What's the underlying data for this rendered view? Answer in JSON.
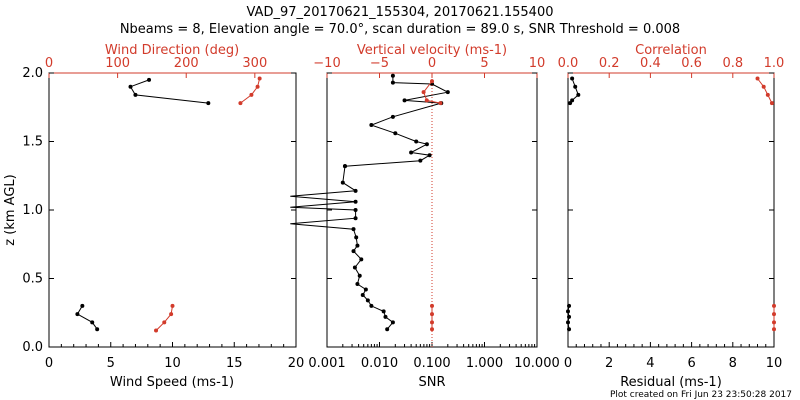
{
  "figure": {
    "title_line1": "VAD_97_20170621_155304, 20170621.155400",
    "title_line2": "Nbeams = 8, Elevation angle = 70.0°, scan duration = 89.0 s, SNR Threshold = 0.008",
    "footer": "Plot created on Fri Jun 23 23:50:28 2017"
  },
  "colors": {
    "primary": "#000000",
    "secondary": "#d23b2b"
  },
  "chart_data": [
    {
      "type": "line",
      "title": "Wind Speed / Wind Direction",
      "xlabel": "Wind Speed (ms-1)",
      "ylabel": "z (km AGL)",
      "xlim": [
        0,
        20
      ],
      "ylim": [
        0,
        2.0
      ],
      "x_ticks": [
        "0",
        "5",
        "10",
        "15",
        "20"
      ],
      "y_ticks": [
        "0.0",
        "0.5",
        "1.0",
        "1.5",
        "2.0"
      ],
      "top_axis": {
        "label": "Wind Direction (deg)",
        "lim": [
          0,
          360
        ],
        "ticks": [
          "0",
          "100",
          "200",
          "300"
        ]
      },
      "series": [
        {
          "name": "Wind Speed",
          "color": "black",
          "axis": "bottom",
          "segments": [
            [
              [
                8.1,
                1.95
              ],
              [
                6.6,
                1.9
              ],
              [
                7.0,
                1.84
              ],
              [
                12.9,
                1.78
              ]
            ],
            [
              [
                2.7,
                0.3
              ],
              [
                2.3,
                0.24
              ],
              [
                3.5,
                0.18
              ],
              [
                3.9,
                0.13
              ]
            ]
          ]
        },
        {
          "name": "Wind Direction",
          "color": "red",
          "axis": "top",
          "segments": [
            [
              [
                307,
                1.96
              ],
              [
                304,
                1.9
              ],
              [
                295,
                1.84
              ],
              [
                279,
                1.78
              ]
            ],
            [
              [
                180,
                0.3
              ],
              [
                178,
                0.24
              ],
              [
                168,
                0.18
              ],
              [
                156,
                0.12
              ]
            ]
          ]
        }
      ]
    },
    {
      "type": "line",
      "title": "SNR / Vertical velocity",
      "xlabel": "SNR",
      "xscale": "log",
      "xlim": [
        0.001,
        10
      ],
      "ylim": [
        0,
        2.0
      ],
      "x_ticks": [
        "0.001",
        "0.010",
        "0.100",
        "1.000",
        "10.000"
      ],
      "top_axis": {
        "label": "Vertical velocity (ms-1)",
        "lim": [
          -10,
          10
        ],
        "ticks": [
          "−10",
          "−5",
          "0",
          "5",
          "10"
        ]
      },
      "series": [
        {
          "name": "SNR",
          "color": "black",
          "axis": "bottom",
          "segments": [
            [
              [
                0.018,
                1.98
              ],
              [
                0.018,
                1.93
              ],
              [
                0.1,
                1.92
              ],
              [
                0.2,
                1.86
              ],
              [
                0.03,
                1.8
              ],
              [
                0.15,
                1.78
              ],
              [
                0.018,
                1.68
              ],
              [
                0.007,
                1.62
              ],
              [
                0.02,
                1.56
              ],
              [
                0.05,
                1.5
              ],
              [
                0.08,
                1.48
              ],
              [
                0.04,
                1.42
              ],
              [
                0.09,
                1.4
              ],
              [
                0.06,
                1.36
              ],
              [
                0.0022,
                1.32
              ]
            ],
            [
              [
                0.0022,
                1.32
              ],
              [
                0.002,
                1.2
              ],
              [
                0.0035,
                1.14
              ],
              [
                0.0002,
                1.1
              ],
              [
                0.0035,
                1.06
              ],
              [
                0.0002,
                1.02
              ],
              [
                0.0035,
                1.0
              ],
              [
                0.0035,
                0.94
              ],
              [
                0.0002,
                0.9
              ],
              [
                0.0032,
                0.86
              ],
              [
                0.0036,
                0.8
              ],
              [
                0.0038,
                0.74
              ],
              [
                0.0032,
                0.7
              ],
              [
                0.0045,
                0.64
              ],
              [
                0.0034,
                0.58
              ],
              [
                0.0042,
                0.52
              ],
              [
                0.0038,
                0.46
              ],
              [
                0.0055,
                0.42
              ],
              [
                0.0048,
                0.38
              ],
              [
                0.006,
                0.34
              ],
              [
                0.007,
                0.3
              ],
              [
                0.012,
                0.26
              ],
              [
                0.013,
                0.22
              ],
              [
                0.018,
                0.18
              ],
              [
                0.014,
                0.13
              ]
            ]
          ]
        },
        {
          "name": "Vertical velocity",
          "color": "red",
          "axis": "top",
          "reference_line": 0,
          "segments": [
            [
              [
                0,
                1.94
              ],
              [
                -0.8,
                1.86
              ],
              [
                -0.5,
                1.8
              ],
              [
                0.8,
                1.78
              ]
            ],
            [
              [
                0,
                0.3
              ],
              [
                0,
                0.24
              ],
              [
                0,
                0.18
              ],
              [
                0,
                0.13
              ]
            ]
          ]
        }
      ]
    },
    {
      "type": "line",
      "title": "Residual / Correlation",
      "xlabel": "Residual (ms-1)",
      "xlim": [
        0,
        10
      ],
      "ylim": [
        0,
        2.0
      ],
      "x_ticks": [
        "0",
        "2",
        "4",
        "6",
        "8",
        "10"
      ],
      "top_axis": {
        "label": "Correlation",
        "lim": [
          0,
          1.0
        ],
        "ticks": [
          "0.0",
          "0.2",
          "0.4",
          "0.6",
          "0.8",
          "1.0"
        ]
      },
      "series": [
        {
          "name": "Residual",
          "color": "black",
          "axis": "bottom",
          "segments": [
            [
              [
                0.2,
                1.96
              ],
              [
                0.35,
                1.9
              ],
              [
                0.5,
                1.84
              ],
              [
                0.2,
                1.8
              ],
              [
                0.1,
                1.78
              ]
            ],
            [
              [
                0.05,
                0.3
              ],
              [
                0.0,
                0.26
              ],
              [
                0.05,
                0.22
              ],
              [
                0.0,
                0.18
              ],
              [
                0.05,
                0.13
              ]
            ]
          ]
        },
        {
          "name": "Correlation",
          "color": "red",
          "axis": "top",
          "segments": [
            [
              [
                0.92,
                1.96
              ],
              [
                0.95,
                1.9
              ],
              [
                0.97,
                1.84
              ],
              [
                0.99,
                1.78
              ]
            ],
            [
              [
                1.0,
                0.3
              ],
              [
                1.0,
                0.24
              ],
              [
                1.0,
                0.18
              ],
              [
                1.0,
                0.13
              ]
            ]
          ]
        }
      ]
    }
  ]
}
